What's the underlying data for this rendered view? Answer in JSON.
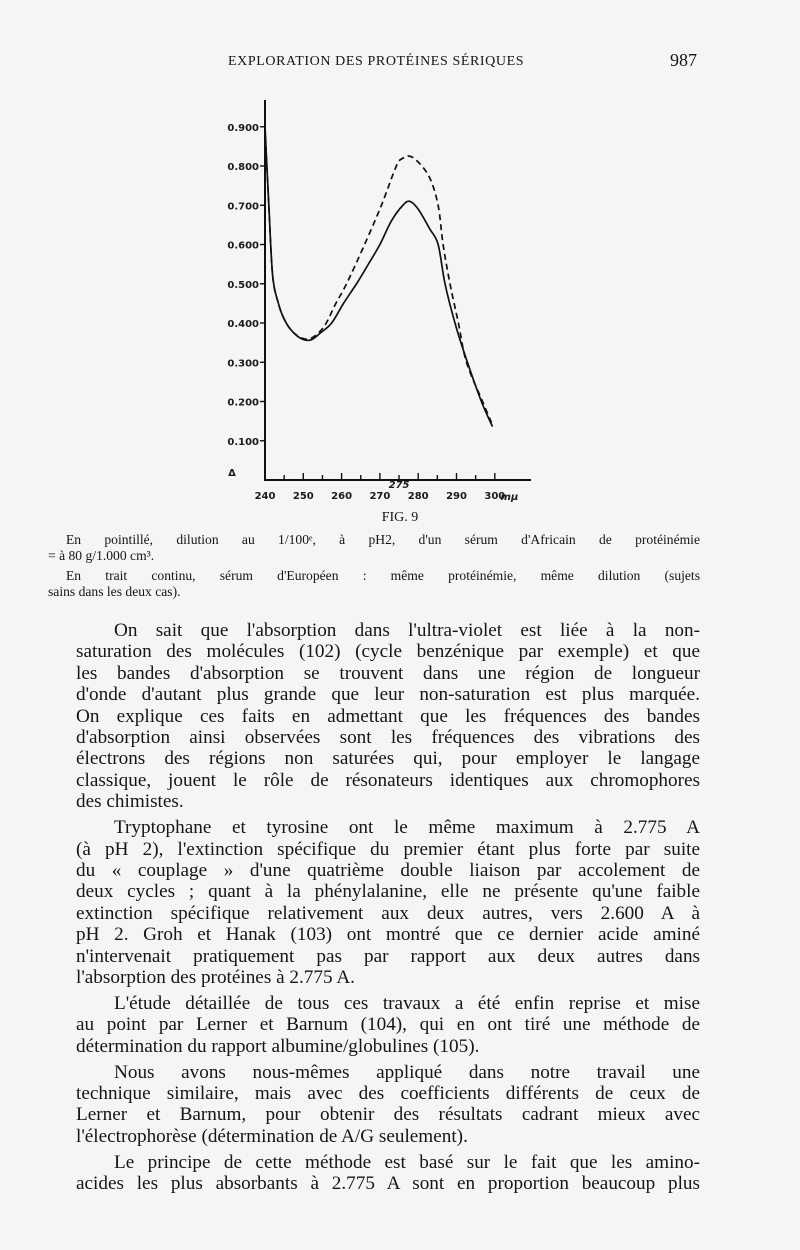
{
  "header": {
    "running_title": "EXPLORATION DES PROTÉINES SÉRIQUES",
    "page_number": "987"
  },
  "chart_data": {
    "type": "line",
    "title": "",
    "xlabel": "mμ",
    "ylabel": "Δ",
    "xlim": [
      240,
      305
    ],
    "ylim": [
      0,
      0.95
    ],
    "x_ticks": [
      "240",
      "250",
      "260",
      "270",
      "280",
      "290",
      "300"
    ],
    "x_annotation": "275",
    "y_ticks": [
      "0.900",
      "0.800",
      "0.700",
      "0.600",
      "0.500",
      "0.400",
      "0.300",
      "0.200",
      "0.100"
    ],
    "y_tick_values": [
      0.9,
      0.8,
      0.7,
      0.6,
      0.5,
      0.4,
      0.3,
      0.2,
      0.1
    ],
    "grid": false,
    "legend": "none",
    "series": [
      {
        "style": "solid",
        "points": [
          [
            240,
            0.9
          ],
          [
            241,
            0.7
          ],
          [
            242,
            0.52
          ],
          [
            243.5,
            0.45
          ],
          [
            245,
            0.41
          ],
          [
            247,
            0.38
          ],
          [
            249.5,
            0.36
          ],
          [
            252,
            0.357
          ],
          [
            254.5,
            0.375
          ],
          [
            257.4,
            0.4
          ],
          [
            260.5,
            0.45
          ],
          [
            263.9,
            0.5
          ],
          [
            267,
            0.55
          ],
          [
            270,
            0.6
          ],
          [
            273,
            0.66
          ],
          [
            276,
            0.7
          ],
          [
            277.8,
            0.71
          ],
          [
            280,
            0.69
          ],
          [
            283,
            0.64
          ],
          [
            285.2,
            0.6
          ],
          [
            287,
            0.5
          ],
          [
            289.6,
            0.4
          ],
          [
            292.5,
            0.31
          ],
          [
            296.5,
            0.2
          ],
          [
            299.4,
            0.136
          ]
        ]
      },
      {
        "style": "dashed",
        "points": [
          [
            240,
            0.9
          ],
          [
            241,
            0.7
          ],
          [
            242,
            0.52
          ],
          [
            243.5,
            0.45
          ],
          [
            245,
            0.41
          ],
          [
            247,
            0.38
          ],
          [
            249.5,
            0.362
          ],
          [
            251.7,
            0.36
          ],
          [
            254,
            0.375
          ],
          [
            256,
            0.4
          ],
          [
            258.5,
            0.45
          ],
          [
            261.3,
            0.5
          ],
          [
            266,
            0.6
          ],
          [
            270.4,
            0.7
          ],
          [
            274.3,
            0.8
          ],
          [
            276,
            0.82
          ],
          [
            277.8,
            0.825
          ],
          [
            280,
            0.81
          ],
          [
            283,
            0.77
          ],
          [
            285.2,
            0.7
          ],
          [
            286.5,
            0.6
          ],
          [
            288.3,
            0.5
          ],
          [
            290.5,
            0.4
          ],
          [
            292.6,
            0.3
          ],
          [
            296.8,
            0.2
          ],
          [
            299.4,
            0.14
          ]
        ]
      }
    ]
  },
  "caption": {
    "fig_label": "FIG. 9",
    "lines": [
      "En pointillé, dilution au 1/100ᵉ, à pH2, d'un sérum d'Africain de protéinémie",
      "= à 80 g/1.000 cm³.",
      "En trait continu, sérum d'Européen : même protéinémie, même dilution (sujets",
      "sains dans les deux cas)."
    ]
  },
  "body": {
    "paragraphs": [
      [
        "On sait que l'absorption dans l'ultra-violet est liée à la non-",
        "saturation des molécules (102) (cycle benzénique par exemple) et que",
        "les bandes d'absorption se trouvent dans une région de longueur",
        "d'onde d'autant plus grande que leur non-saturation est plus marquée.",
        "On explique ces faits en admettant que les fréquences des bandes",
        "d'absorption ainsi observées sont les fréquences des vibrations des",
        "électrons des régions non saturées qui, pour employer le langage",
        "classique, jouent le rôle de résonateurs identiques aux chromophores",
        "des chimistes."
      ],
      [
        "Tryptophane et tyrosine ont le même maximum à 2.775 A",
        "(à pH 2), l'extinction spécifique du premier étant plus forte par suite",
        "du « couplage » d'une quatrième double liaison par accolement de",
        "deux cycles ; quant à la phénylalanine, elle ne présente qu'une faible",
        "extinction spécifique relativement aux deux autres, vers 2.600 A à",
        "pH 2. Groh et Hanak (103) ont montré que ce dernier acide aminé",
        "n'intervenait pratiquement pas par rapport aux deux autres dans",
        "l'absorption des protéines à 2.775 A."
      ],
      [
        "L'étude détaillée de tous ces travaux a été enfin reprise et mise",
        "au point par Lerner et Barnum (104), qui en ont tiré une méthode de",
        "détermination du rapport albumine/globulines (105)."
      ],
      [
        "Nous avons nous-mêmes appliqué dans notre travail une",
        "technique similaire, mais avec des coefficients différents de ceux de",
        "Lerner et Barnum, pour obtenir des résultats cadrant mieux avec",
        "l'électrophorèse (détermination de A/G seulement)."
      ],
      [
        "Le principe de cette méthode est basé sur le fait que les amino-",
        "acides les plus absorbants à 2.775 A sont en proportion beaucoup plus"
      ]
    ]
  }
}
